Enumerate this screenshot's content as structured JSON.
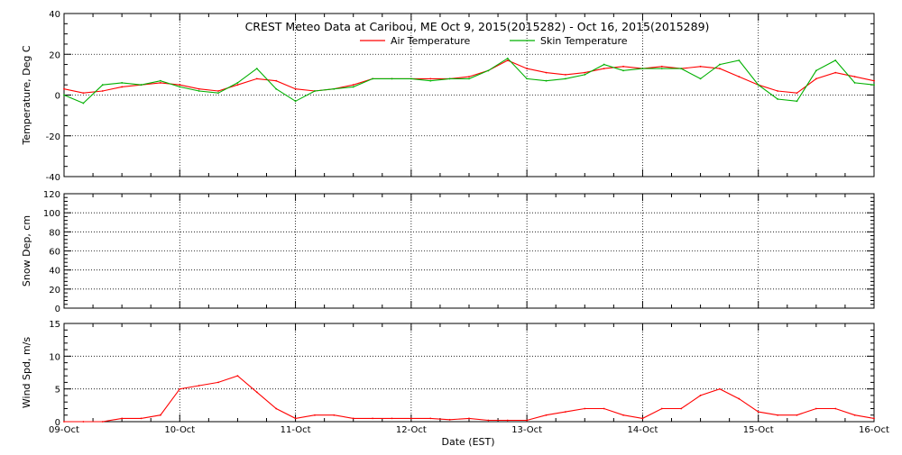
{
  "chart_data": {
    "title": "CREST Meteo Data at Caribou, ME   Oct  9, 2015(2015282) - Oct 16, 2015(2015289)",
    "xlabel": "Date (EST)",
    "x_ticks": [
      "09-Oct",
      "10-Oct",
      "11-Oct",
      "12-Oct",
      "13-Oct",
      "14-Oct",
      "15-Oct",
      "16-Oct"
    ],
    "x_range_days": [
      0,
      7
    ],
    "grid": "dotted, both axes",
    "panels": [
      {
        "type": "line",
        "ylabel": "Temperature, Deg C",
        "ylim": [
          -40,
          40
        ],
        "yticks": [
          -40,
          -20,
          0,
          20,
          40
        ],
        "legend_position": "top-center",
        "series": [
          {
            "name": "Air Temperature",
            "color": "#ff0000",
            "x": [
              "Oct 9 00:00",
              "Oct 9 04:00",
              "Oct 9 08:00",
              "Oct 9 12:00",
              "Oct 9 16:00",
              "Oct 9 20:00",
              "Oct 10 00:00",
              "Oct 10 04:00",
              "Oct 10 08:00",
              "Oct 10 12:00",
              "Oct 10 16:00",
              "Oct 10 20:00",
              "Oct 11 00:00",
              "Oct 11 04:00",
              "Oct 11 08:00",
              "Oct 11 12:00",
              "Oct 11 16:00",
              "Oct 11 20:00",
              "Oct 12 00:00",
              "Oct 12 04:00",
              "Oct 12 08:00",
              "Oct 12 12:00",
              "Oct 12 16:00",
              "Oct 12 20:00",
              "Oct 13 00:00",
              "Oct 13 04:00",
              "Oct 13 08:00",
              "Oct 13 12:00",
              "Oct 13 16:00",
              "Oct 13 20:00",
              "Oct 14 00:00",
              "Oct 14 04:00",
              "Oct 14 08:00",
              "Oct 14 12:00",
              "Oct 14 16:00",
              "Oct 14 20:00",
              "Oct 15 00:00",
              "Oct 15 04:00",
              "Oct 15 08:00",
              "Oct 15 12:00",
              "Oct 15 16:00",
              "Oct 15 20:00",
              "Oct 16 00:00"
            ],
            "values": [
              3,
              1,
              2,
              4,
              5,
              6,
              5,
              3,
              2,
              5,
              8,
              7,
              3,
              2,
              3,
              5,
              8,
              8,
              8,
              8,
              8,
              9,
              12,
              17,
              13,
              11,
              10,
              11,
              13,
              14,
              13,
              14,
              13,
              14,
              13,
              9,
              5,
              2,
              1,
              8,
              11,
              9,
              7
            ]
          },
          {
            "name": "Skin Temperature",
            "color": "#00b000",
            "x": [
              "Oct 9 00:00",
              "Oct 9 04:00",
              "Oct 9 08:00",
              "Oct 9 12:00",
              "Oct 9 16:00",
              "Oct 9 20:00",
              "Oct 10 00:00",
              "Oct 10 04:00",
              "Oct 10 08:00",
              "Oct 10 12:00",
              "Oct 10 16:00",
              "Oct 10 20:00",
              "Oct 11 00:00",
              "Oct 11 04:00",
              "Oct 11 08:00",
              "Oct 11 12:00",
              "Oct 11 16:00",
              "Oct 11 20:00",
              "Oct 12 00:00",
              "Oct 12 04:00",
              "Oct 12 08:00",
              "Oct 12 12:00",
              "Oct 12 16:00",
              "Oct 12 20:00",
              "Oct 13 00:00",
              "Oct 13 04:00",
              "Oct 13 08:00",
              "Oct 13 12:00",
              "Oct 13 16:00",
              "Oct 13 20:00",
              "Oct 14 00:00",
              "Oct 14 04:00",
              "Oct 14 08:00",
              "Oct 14 12:00",
              "Oct 14 16:00",
              "Oct 14 20:00",
              "Oct 15 00:00",
              "Oct 15 04:00",
              "Oct 15 08:00",
              "Oct 15 12:00",
              "Oct 15 16:00",
              "Oct 15 20:00",
              "Oct 16 00:00"
            ],
            "values": [
              0,
              -4,
              5,
              6,
              5,
              7,
              4,
              2,
              1,
              6,
              13,
              3,
              -3,
              2,
              3,
              4,
              8,
              8,
              8,
              7,
              8,
              8,
              12,
              18,
              8,
              7,
              8,
              10,
              15,
              12,
              13,
              13,
              13,
              8,
              15,
              17,
              5,
              -2,
              -3,
              12,
              17,
              6,
              5
            ]
          }
        ]
      },
      {
        "type": "line",
        "ylabel": "Snow Dep, cm",
        "ylim": [
          0,
          120
        ],
        "yticks": [
          0,
          20,
          40,
          60,
          80,
          100,
          120
        ],
        "series": []
      },
      {
        "type": "line",
        "ylabel": "Wind Spd, m/s",
        "ylim": [
          0,
          15
        ],
        "yticks": [
          0,
          5,
          10,
          15
        ],
        "series": [
          {
            "color": "#ff0000",
            "x": [
              "Oct 9 00:00",
              "Oct 9 04:00",
              "Oct 9 08:00",
              "Oct 9 12:00",
              "Oct 9 16:00",
              "Oct 9 20:00",
              "Oct 10 00:00",
              "Oct 10 04:00",
              "Oct 10 08:00",
              "Oct 10 12:00",
              "Oct 10 16:00",
              "Oct 10 20:00",
              "Oct 11 00:00",
              "Oct 11 04:00",
              "Oct 11 08:00",
              "Oct 11 12:00",
              "Oct 11 16:00",
              "Oct 11 20:00",
              "Oct 12 00:00",
              "Oct 12 04:00",
              "Oct 12 08:00",
              "Oct 12 12:00",
              "Oct 12 16:00",
              "Oct 12 20:00",
              "Oct 13 00:00",
              "Oct 13 04:00",
              "Oct 13 08:00",
              "Oct 13 12:00",
              "Oct 13 16:00",
              "Oct 13 20:00",
              "Oct 14 00:00",
              "Oct 14 04:00",
              "Oct 14 08:00",
              "Oct 14 12:00",
              "Oct 14 16:00",
              "Oct 14 20:00",
              "Oct 15 00:00",
              "Oct 15 04:00",
              "Oct 15 08:00",
              "Oct 15 12:00",
              "Oct 15 16:00",
              "Oct 15 20:00",
              "Oct 16 00:00"
            ],
            "values": [
              0,
              0,
              0,
              0.5,
              0.5,
              1,
              5,
              5.5,
              6,
              7,
              4.5,
              2,
              0.5,
              1,
              1,
              0.5,
              0.5,
              0.5,
              0.5,
              0.5,
              0.3,
              0.5,
              0.2,
              0.2,
              0.2,
              1,
              1.5,
              2,
              2,
              1,
              0.5,
              2,
              2,
              4,
              5,
              3.5,
              1.5,
              1,
              1,
              2,
              2,
              1,
              0.5
            ]
          }
        ]
      }
    ]
  }
}
